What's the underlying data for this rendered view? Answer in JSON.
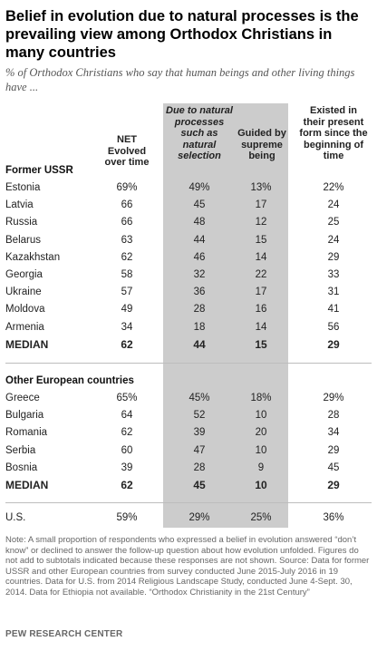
{
  "title": "Belief in evolution due to natural processes is the prevailing view among Orthodox Christians in many countries",
  "subtitle": "% of Orthodox Christians who say that human beings and other living things have ...",
  "columns": [
    {
      "id": "net_evolved",
      "label": "NET Evolved over time"
    },
    {
      "id": "natural",
      "label": "Due to natural processes such as natural selection"
    },
    {
      "id": "guided",
      "label": "Guided by supreme being"
    },
    {
      "id": "existed",
      "label": "Existed in their present form since the beginning of time"
    }
  ],
  "sections": [
    {
      "label": "Former USSR",
      "rows": [
        {
          "name": "Estonia",
          "values": [
            "69%",
            "49%",
            "13%",
            "22%"
          ]
        },
        {
          "name": "Latvia",
          "values": [
            "66",
            "45",
            "17",
            "24"
          ]
        },
        {
          "name": "Russia",
          "values": [
            "66",
            "48",
            "12",
            "25"
          ]
        },
        {
          "name": "Belarus",
          "values": [
            "63",
            "44",
            "15",
            "24"
          ]
        },
        {
          "name": "Kazakhstan",
          "values": [
            "62",
            "46",
            "14",
            "29"
          ]
        },
        {
          "name": "Georgia",
          "values": [
            "58",
            "32",
            "22",
            "33"
          ]
        },
        {
          "name": "Ukraine",
          "values": [
            "57",
            "36",
            "17",
            "31"
          ]
        },
        {
          "name": "Moldova",
          "values": [
            "49",
            "28",
            "16",
            "41"
          ]
        },
        {
          "name": "Armenia",
          "values": [
            "34",
            "18",
            "14",
            "56"
          ]
        }
      ],
      "median": {
        "name": "MEDIAN",
        "values": [
          "62",
          "44",
          "15",
          "29"
        ]
      }
    },
    {
      "label": "Other European countries",
      "rows": [
        {
          "name": "Greece",
          "values": [
            "65%",
            "45%",
            "18%",
            "29%"
          ]
        },
        {
          "name": "Bulgaria",
          "values": [
            "64",
            "52",
            "10",
            "28"
          ]
        },
        {
          "name": "Romania",
          "values": [
            "62",
            "39",
            "20",
            "34"
          ]
        },
        {
          "name": "Serbia",
          "values": [
            "60",
            "47",
            "10",
            "29"
          ]
        },
        {
          "name": "Bosnia",
          "values": [
            "39",
            "28",
            "9",
            "45"
          ]
        }
      ],
      "median": {
        "name": "MEDIAN",
        "values": [
          "62",
          "45",
          "10",
          "29"
        ]
      }
    }
  ],
  "us_row": {
    "name": "U.S.",
    "values": [
      "59%",
      "29%",
      "25%",
      "36%"
    ]
  },
  "note": "Note: A small proportion of respondents who expressed a belief in evolution answered “don’t know” or declined to answer the follow-up question about how evolution unfolded. Figures do not add to subtotals indicated because these responses are not shown. Source: Data for former USSR and other European countries from survey conducted June 2015-July 2016 in 19 countries. Data for U.S. from 2014 Religious Landscape Study, conducted June 4-Sept. 30, 2014. Data for Ethiopia not available. “Orthodox Christianity in the 21st Century”",
  "source_label": "PEW RESEARCH CENTER",
  "colors": {
    "shaded_column": "#cccccc",
    "text": "#222222",
    "note": "#666666"
  },
  "chart_data": {
    "type": "table",
    "title": "Belief in evolution due to natural processes is the prevailing view among Orthodox Christians in many countries",
    "subtitle": "% of Orthodox Christians who say that human beings and other living things have ...",
    "columns": [
      "NET Evolved over time",
      "Due to natural processes such as natural selection",
      "Guided by supreme being",
      "Existed in their present form since the beginning of time"
    ],
    "rows": [
      {
        "group": "Former USSR",
        "name": "Estonia",
        "values": [
          69,
          49,
          13,
          22
        ]
      },
      {
        "group": "Former USSR",
        "name": "Latvia",
        "values": [
          66,
          45,
          17,
          24
        ]
      },
      {
        "group": "Former USSR",
        "name": "Russia",
        "values": [
          66,
          48,
          12,
          25
        ]
      },
      {
        "group": "Former USSR",
        "name": "Belarus",
        "values": [
          63,
          44,
          15,
          24
        ]
      },
      {
        "group": "Former USSR",
        "name": "Kazakhstan",
        "values": [
          62,
          46,
          14,
          29
        ]
      },
      {
        "group": "Former USSR",
        "name": "Georgia",
        "values": [
          58,
          32,
          22,
          33
        ]
      },
      {
        "group": "Former USSR",
        "name": "Ukraine",
        "values": [
          57,
          36,
          17,
          31
        ]
      },
      {
        "group": "Former USSR",
        "name": "Moldova",
        "values": [
          49,
          28,
          16,
          41
        ]
      },
      {
        "group": "Former USSR",
        "name": "Armenia",
        "values": [
          34,
          18,
          14,
          56
        ]
      },
      {
        "group": "Former USSR",
        "name": "MEDIAN",
        "values": [
          62,
          44,
          15,
          29
        ]
      },
      {
        "group": "Other European countries",
        "name": "Greece",
        "values": [
          65,
          45,
          18,
          29
        ]
      },
      {
        "group": "Other European countries",
        "name": "Bulgaria",
        "values": [
          64,
          52,
          10,
          28
        ]
      },
      {
        "group": "Other European countries",
        "name": "Romania",
        "values": [
          62,
          39,
          20,
          34
        ]
      },
      {
        "group": "Other European countries",
        "name": "Serbia",
        "values": [
          60,
          47,
          10,
          29
        ]
      },
      {
        "group": "Other European countries",
        "name": "Bosnia",
        "values": [
          39,
          28,
          9,
          45
        ]
      },
      {
        "group": "Other European countries",
        "name": "MEDIAN",
        "values": [
          62,
          45,
          10,
          29
        ]
      },
      {
        "group": "",
        "name": "U.S.",
        "values": [
          59,
          29,
          25,
          36
        ]
      }
    ]
  }
}
